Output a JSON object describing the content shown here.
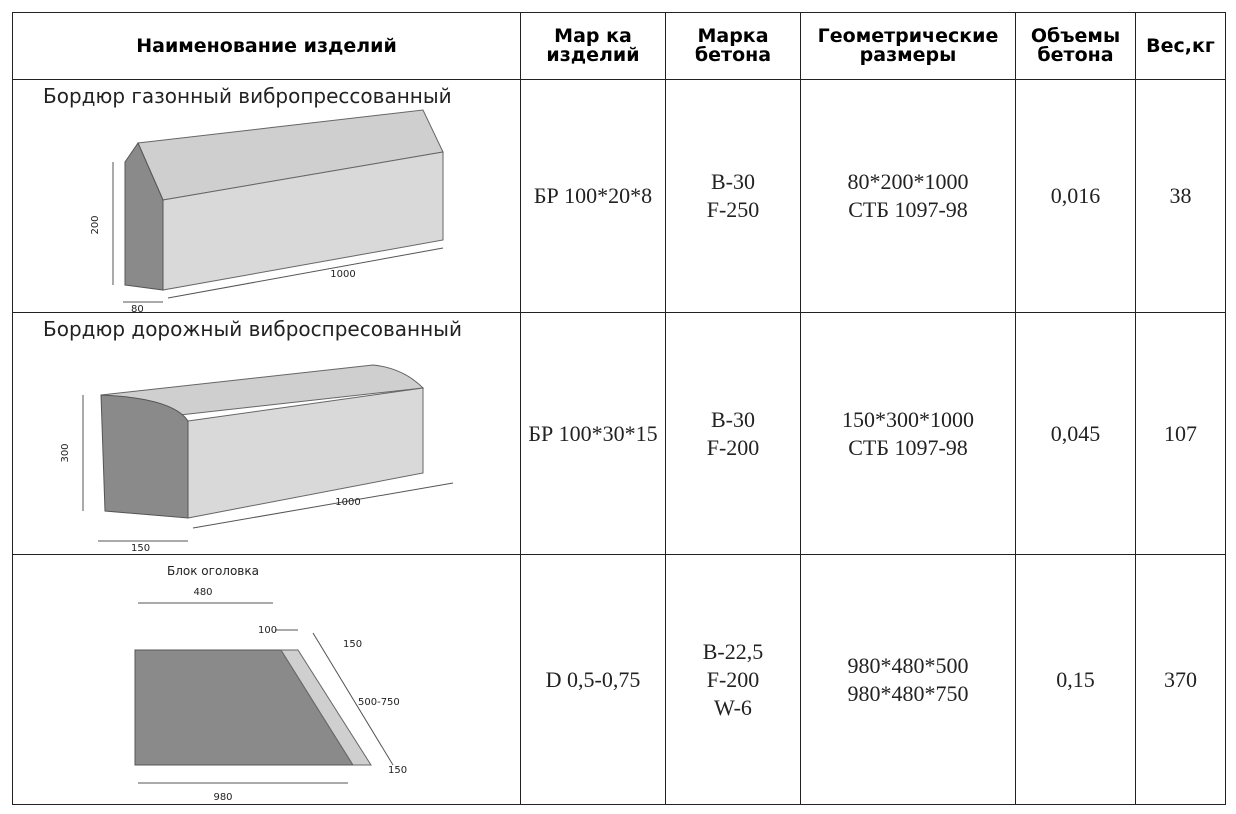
{
  "table": {
    "header": [
      "Наименование изделий",
      "Мар ка\nизделий",
      "Марка\nбетона",
      "Геометрические\nразмеры",
      "Объемы\nбетона",
      "Вес,кг"
    ],
    "rows": [
      {
        "name": "Бордюр газонный вибропрессованный",
        "drawing": {
          "labels": [
            "200",
            "1000",
            "80"
          ]
        },
        "mark": "БР 100*20*8",
        "concrete": "B-30\nF-250",
        "size": "80*200*1000\nСТБ 1097-98",
        "volume": "0,016",
        "weight": "38"
      },
      {
        "name": "Бордюр дорожный виброспресованный",
        "drawing": {
          "labels": [
            "300",
            "1000",
            "150"
          ]
        },
        "mark": "БР 100*30*15",
        "concrete": "B-30\nF-200",
        "size": "150*300*1000\nСТБ 1097-98",
        "volume": "0,045",
        "weight": "107"
      },
      {
        "drawing": {
          "labels": [
            "Блок оголовка",
            "480",
            "100",
            "150",
            "500-750",
            "150",
            "980"
          ]
        },
        "mark": "D 0,5-0,75",
        "concrete": "B-22,5\nF-200\nW-6",
        "size": "980*480*500\n980*480*750",
        "volume": "0,15",
        "weight": "370"
      }
    ]
  }
}
